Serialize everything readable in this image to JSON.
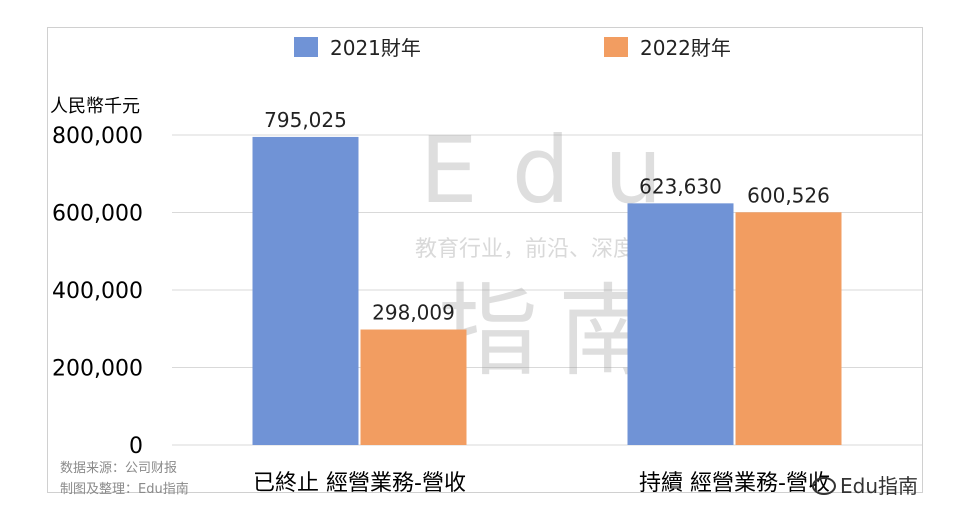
{
  "chart_data": {
    "type": "bar",
    "ylabel": "人民幣千元",
    "ylim": [
      0,
      800000
    ],
    "yticks": [
      0,
      200000,
      400000,
      600000,
      800000
    ],
    "ytick_labels": [
      "0",
      "200,000",
      "400,000",
      "600,000",
      "800,000"
    ],
    "categories": [
      "已終止 經營業務-營收",
      "持續 經營業務-營收"
    ],
    "series": [
      {
        "name": "2021財年",
        "color": "#7093d6",
        "values": [
          795025,
          623630
        ],
        "labels": [
          "795,025",
          "623,630"
        ]
      },
      {
        "name": "2022財年",
        "color": "#f29d61",
        "values": [
          298009,
          600526
        ],
        "labels": [
          "298,009",
          "600,526"
        ]
      }
    ],
    "legend_position": "top",
    "grid": true
  },
  "watermark": {
    "brand": "Edu",
    "slogan": "教育行业，前沿、深度、独家",
    "name": "指南"
  },
  "source": {
    "line1": "数据来源：公司财报",
    "line2": "制图及整理：Edu指南"
  },
  "wechat_tag": "Edu指南"
}
